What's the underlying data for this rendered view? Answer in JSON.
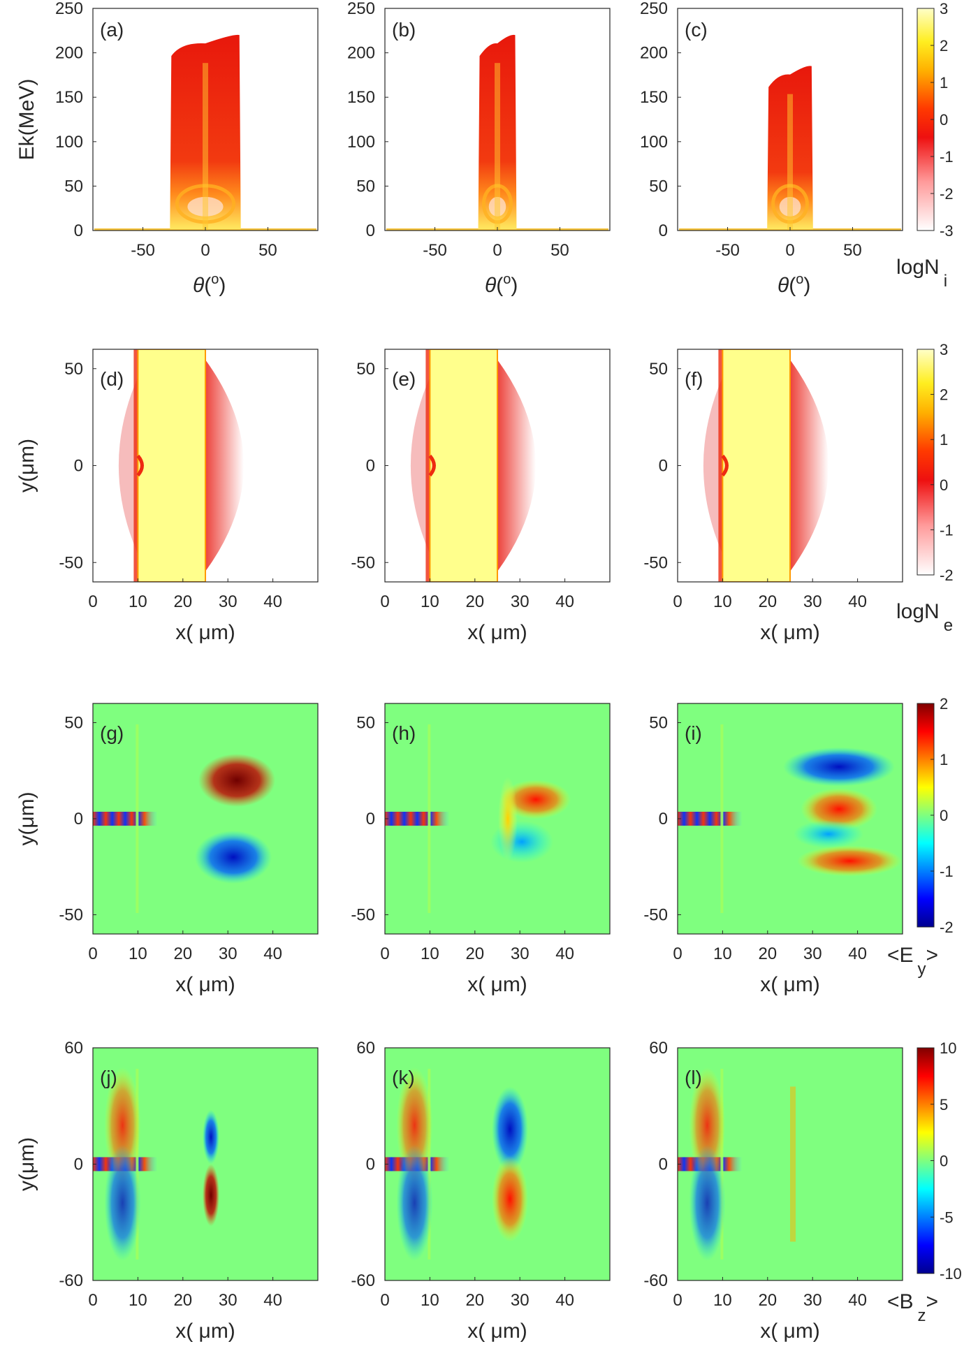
{
  "figure": {
    "rows": [
      {
        "kind": "density",
        "xlabel_sym": "θ",
        "xlabel_unit": "(o)",
        "ylabel": "Ek(MeV)",
        "xticks": [
          "-50",
          "0",
          "50"
        ],
        "yticks": [
          "0",
          "50",
          "100",
          "150",
          "200",
          "250"
        ],
        "panels": [
          "(a)",
          "(b)",
          "(c)"
        ],
        "colorbar": {
          "ticks": [
            "-3",
            "-2",
            "-1",
            "0",
            "1",
            "2",
            "3"
          ],
          "label_main": "logN",
          "label_sub": "i"
        }
      },
      {
        "kind": "slab",
        "xlabel": "x( μm)",
        "ylabel": "y(μm)",
        "xticks": [
          "0",
          "10",
          "20",
          "30",
          "40"
        ],
        "yticks": [
          "-50",
          "0",
          "50"
        ],
        "panels": [
          "(d)",
          "(e)",
          "(f)"
        ],
        "colorbar": {
          "ticks": [
            "-2",
            "-1",
            "0",
            "1",
            "2",
            "3"
          ],
          "label_main": "logN",
          "label_sub": "e"
        }
      },
      {
        "kind": "field",
        "xlabel": "x( μm)",
        "ylabel": "y(μm)",
        "xticks": [
          "0",
          "10",
          "20",
          "30",
          "40"
        ],
        "yticks": [
          "-50",
          "0",
          "50"
        ],
        "panels": [
          "(g)",
          "(h)",
          "(i)"
        ],
        "colorbar": {
          "ticks": [
            "-2",
            "-1",
            "0",
            "1",
            "2"
          ],
          "label_main": "<E",
          "label_sub": "y",
          "label_end": ">"
        }
      },
      {
        "kind": "field",
        "xlabel": "x( μm)",
        "ylabel": "y(μm)",
        "xticks": [
          "0",
          "10",
          "20",
          "30",
          "40"
        ],
        "yticks": [
          "-60",
          "0",
          "60"
        ],
        "panels": [
          "(j)",
          "(k)",
          "(l)"
        ],
        "colorbar": {
          "ticks": [
            "-10",
            "-5",
            "0",
            "5",
            "10"
          ],
          "label_main": "<B",
          "label_sub": "z",
          "label_end": ">"
        }
      }
    ]
  },
  "chart_data": [
    {
      "type": "heatmap",
      "panel": "(a)",
      "colormap": "white-red-yellow",
      "xlim": [
        -90,
        90
      ],
      "ylim": [
        0,
        250
      ],
      "max_energy_MeV": 220,
      "angular_spread_deg": [
        -25,
        25
      ]
    },
    {
      "type": "heatmap",
      "panel": "(b)",
      "colormap": "white-red-yellow",
      "xlim": [
        -90,
        90
      ],
      "ylim": [
        0,
        250
      ],
      "max_energy_MeV": 220,
      "angular_spread_deg": [
        -12,
        12
      ]
    },
    {
      "type": "heatmap",
      "panel": "(c)",
      "colormap": "white-red-yellow",
      "xlim": [
        -90,
        90
      ],
      "ylim": [
        0,
        250
      ],
      "max_energy_MeV": 185,
      "angular_spread_deg": [
        -15,
        15
      ]
    },
    {
      "type": "heatmap",
      "panel": "(d)",
      "colormap": "white-red-yellow",
      "xlim": [
        0,
        50
      ],
      "ylim": [
        -60,
        60
      ],
      "target_x_um": [
        10,
        25
      ]
    },
    {
      "type": "heatmap",
      "panel": "(e)",
      "colormap": "white-red-yellow",
      "xlim": [
        0,
        50
      ],
      "ylim": [
        -60,
        60
      ],
      "target_x_um": [
        10,
        25
      ]
    },
    {
      "type": "heatmap",
      "panel": "(f)",
      "colormap": "white-red-yellow",
      "xlim": [
        0,
        50
      ],
      "ylim": [
        -60,
        60
      ],
      "target_x_um": [
        10,
        25
      ]
    },
    {
      "type": "heatmap",
      "panel": "(g)",
      "colormap": "jet",
      "xlim": [
        0,
        50
      ],
      "ylim": [
        -60,
        60
      ],
      "clim": [
        -2,
        2
      ]
    },
    {
      "type": "heatmap",
      "panel": "(h)",
      "colormap": "jet",
      "xlim": [
        0,
        50
      ],
      "ylim": [
        -60,
        60
      ],
      "clim": [
        -2,
        2
      ]
    },
    {
      "type": "heatmap",
      "panel": "(i)",
      "colormap": "jet",
      "xlim": [
        0,
        50
      ],
      "ylim": [
        -60,
        60
      ],
      "clim": [
        -2,
        2
      ]
    },
    {
      "type": "heatmap",
      "panel": "(j)",
      "colormap": "jet",
      "xlim": [
        0,
        50
      ],
      "ylim": [
        -60,
        60
      ],
      "clim": [
        -10,
        10
      ]
    },
    {
      "type": "heatmap",
      "panel": "(k)",
      "colormap": "jet",
      "xlim": [
        0,
        50
      ],
      "ylim": [
        -60,
        60
      ],
      "clim": [
        -10,
        10
      ]
    },
    {
      "type": "heatmap",
      "panel": "(l)",
      "colormap": "jet",
      "xlim": [
        0,
        50
      ],
      "ylim": [
        -60,
        60
      ],
      "clim": [
        -10,
        10
      ]
    }
  ],
  "colors": {
    "field_background": "#7fff7f",
    "slab": "#ffff8c",
    "dark_red": "#8b0000",
    "red": "#e8150c",
    "dark_blue": "#00008b"
  }
}
